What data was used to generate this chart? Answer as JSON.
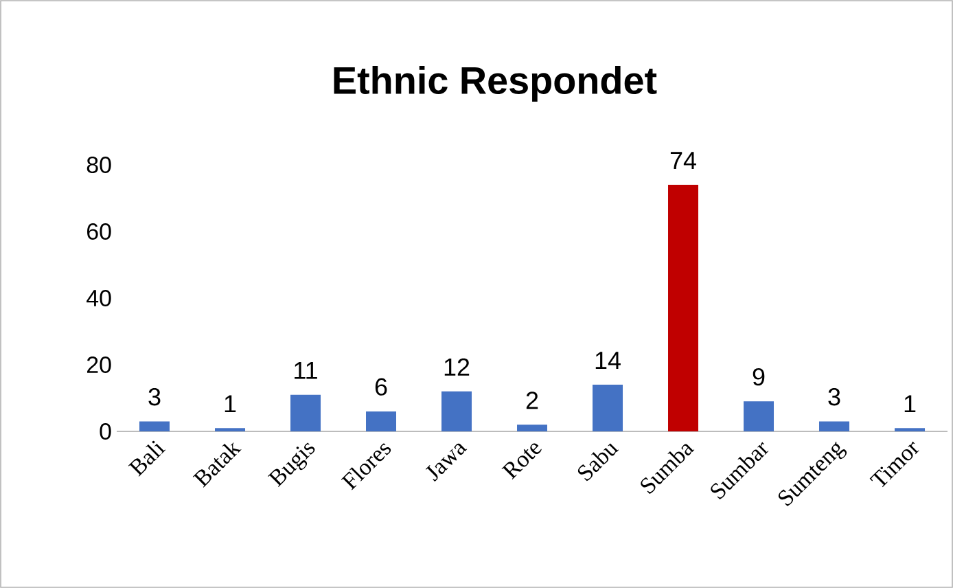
{
  "chart_data": {
    "type": "bar",
    "title": "Ethnic Respondet",
    "categories": [
      "Bali",
      "Batak",
      "Bugis",
      "Flores",
      "Jawa",
      "Rote",
      "Sabu",
      "Sumba",
      "Sumbar",
      "Sumteng",
      "Timor"
    ],
    "values": [
      3,
      1,
      11,
      6,
      12,
      2,
      14,
      74,
      9,
      3,
      1
    ],
    "colors": [
      "#4472c4",
      "#4472c4",
      "#4472c4",
      "#4472c4",
      "#4472c4",
      "#4472c4",
      "#4472c4",
      "#c00000",
      "#4472c4",
      "#4472c4",
      "#4472c4"
    ],
    "ylim": [
      0,
      80
    ],
    "yticks": [
      0,
      20,
      40,
      60,
      80
    ],
    "data_labels": true
  }
}
